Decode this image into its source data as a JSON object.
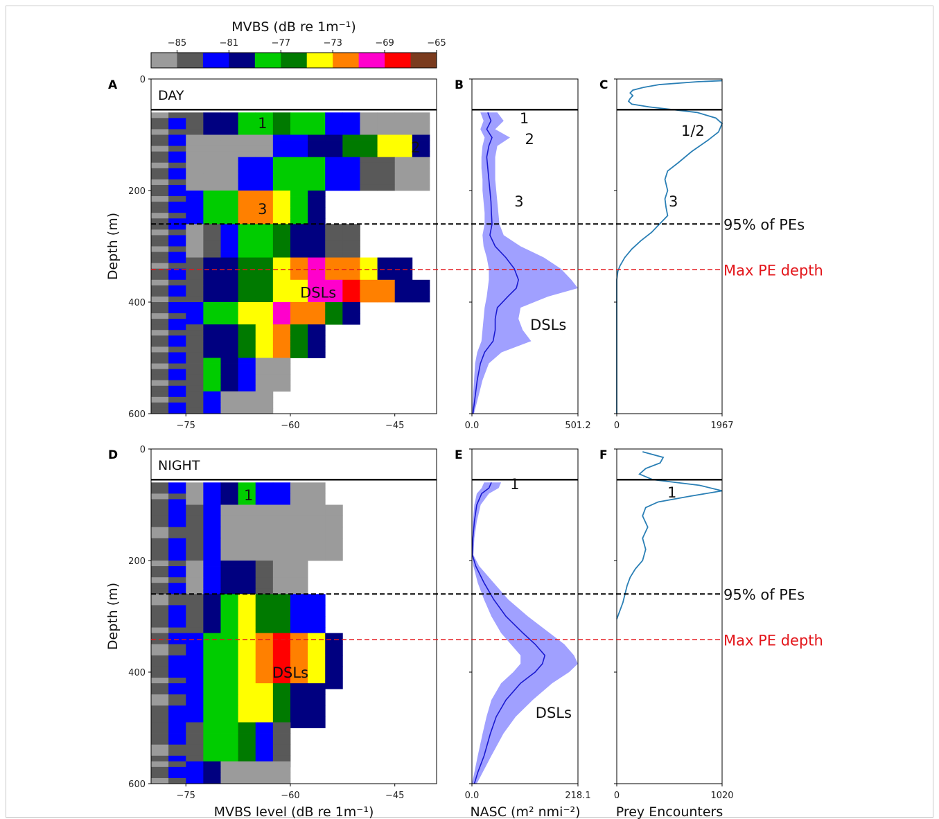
{
  "colorbar": {
    "title": "MVBS (dB re 1m⁻¹)",
    "ticks": [
      "−85",
      "−81",
      "−77",
      "−73",
      "−69",
      "−65"
    ],
    "colors": [
      "#9b9b9b",
      "#595959",
      "#0000ff",
      "#000080",
      "#00cc00",
      "#007a00",
      "#ffff00",
      "#ff8000",
      "#ff00cc",
      "#ff0000",
      "#7a3b1e"
    ]
  },
  "rows": [
    {
      "period": "DAY",
      "letters": [
        "A",
        "B",
        "C"
      ],
      "depth_ylabel": "Depth (m)",
      "depth_ticks": [
        "0",
        "200",
        "400",
        "600"
      ],
      "echogram_xticks": [
        "−75",
        "−60",
        "−45"
      ],
      "nasc_xticks": [
        "0.0",
        "501.2"
      ],
      "prey_xticks": [
        "0",
        "1967"
      ],
      "echogram_labels": [
        "1",
        "2",
        "3",
        "DSLs"
      ],
      "nasc_labels": [
        "1",
        "2",
        "3",
        "DSLs"
      ],
      "prey_labels": [
        "1/2",
        "3"
      ],
      "line_95_label": "95% of PEs",
      "line_max_label": "Max PE depth"
    },
    {
      "period": "NIGHT",
      "letters": [
        "D",
        "E",
        "F"
      ],
      "depth_ylabel": "Depth (m)",
      "depth_ticks": [
        "0",
        "200",
        "400",
        "600"
      ],
      "echogram_xticks": [
        "−75",
        "−60",
        "−45"
      ],
      "nasc_xticks": [
        "0.0",
        "218.1"
      ],
      "prey_xticks": [
        "0",
        "1020"
      ],
      "echogram_labels": [
        "1",
        "DSLs"
      ],
      "nasc_labels": [
        "1",
        "DSLs"
      ],
      "prey_labels": [
        "1"
      ],
      "line_95_label": "95% of PEs",
      "line_max_label": "Max PE depth"
    }
  ],
  "xlabels": {
    "echogram": "MVBS level (dB re 1m⁻¹)",
    "nasc": "NASC (m² nmi⁻²)",
    "prey": "Prey Encounters"
  },
  "chart_data": [
    {
      "panel": "A",
      "type": "heatmap",
      "title": "DAY",
      "xlabel": "MVBS level (dB re 1m⁻¹)",
      "ylabel": "Depth (m)",
      "xlim": [
        -80,
        -39
      ],
      "ylim": [
        600,
        0
      ],
      "colorbar_range": [
        -87,
        -65
      ],
      "sea_surface_depth_m": 55,
      "line_95pct_PE_depth_m": 260,
      "max_PE_depth_m": 342,
      "layers": [
        {
          "depth": [
            60,
            100
          ],
          "xmin": -80,
          "xmax": -42,
          "peak_x": -62,
          "peak_mvbs": -75
        },
        {
          "depth": [
            100,
            140
          ],
          "xmin": -80,
          "xmax": -40,
          "peak_x": -44,
          "peak_mvbs": -72
        },
        {
          "depth": [
            140,
            200
          ],
          "xmin": -80,
          "xmax": -42,
          "peak_x": -58,
          "peak_mvbs": -77
        },
        {
          "depth": [
            200,
            260
          ],
          "xmin": -80,
          "xmax": -55,
          "peak_x": -64,
          "peak_mvbs": -71
        },
        {
          "depth": [
            260,
            320
          ],
          "xmin": -80,
          "xmax": -52,
          "peak_x": -62,
          "peak_mvbs": -75
        },
        {
          "depth": [
            320,
            360
          ],
          "xmin": -80,
          "xmax": -44,
          "peak_x": -55,
          "peak_mvbs": -69
        },
        {
          "depth": [
            360,
            400
          ],
          "xmin": -80,
          "xmax": -42,
          "peak_x": -53,
          "peak_mvbs": -68
        },
        {
          "depth": [
            400,
            440
          ],
          "xmin": -80,
          "xmax": -50,
          "peak_x": -60,
          "peak_mvbs": -69
        },
        {
          "depth": [
            440,
            500
          ],
          "xmin": -80,
          "xmax": -55,
          "peak_x": -62,
          "peak_mvbs": -71
        },
        {
          "depth": [
            500,
            560
          ],
          "xmin": -80,
          "xmax": -62,
          "peak_x": -70,
          "peak_mvbs": -77
        },
        {
          "depth": [
            560,
            600
          ],
          "xmin": -80,
          "xmax": -64,
          "peak_x": -72,
          "peak_mvbs": -81
        }
      ]
    },
    {
      "panel": "B",
      "type": "line",
      "xlim": [
        0,
        501.2
      ],
      "ylim": [
        600,
        0
      ],
      "series": [
        {
          "depth": [
            60,
            75,
            90,
            105,
            120,
            140,
            160,
            180,
            200,
            220,
            240,
            260,
            280,
            300,
            320,
            340,
            360,
            375,
            390,
            410,
            430,
            450,
            470,
            490,
            510,
            540,
            570,
            600
          ],
          "mean": [
            75,
            90,
            70,
            95,
            80,
            70,
            75,
            80,
            85,
            90,
            92,
            95,
            85,
            110,
            160,
            200,
            220,
            210,
            170,
            120,
            110,
            110,
            100,
            60,
            40,
            25,
            15,
            5
          ],
          "lower": [
            40,
            55,
            40,
            60,
            50,
            45,
            45,
            50,
            50,
            55,
            60,
            60,
            50,
            55,
            70,
            80,
            80,
            75,
            70,
            60,
            55,
            50,
            45,
            25,
            15,
            10,
            5,
            0
          ],
          "upper": [
            120,
            150,
            110,
            180,
            120,
            110,
            110,
            110,
            115,
            120,
            125,
            130,
            150,
            230,
            340,
            420,
            470,
            501,
            360,
            230,
            220,
            240,
            280,
            140,
            80,
            50,
            30,
            10
          ]
        }
      ]
    },
    {
      "panel": "C",
      "type": "line",
      "xlim": [
        0,
        1967
      ],
      "ylim": [
        600,
        0
      ],
      "series": [
        {
          "depth": [
            3,
            5,
            10,
            15,
            20,
            25,
            30,
            35,
            40,
            45,
            50,
            60,
            70,
            80,
            95,
            110,
            130,
            150,
            165,
            180,
            200,
            215,
            230,
            245,
            260,
            275,
            290,
            305,
            320,
            335,
            345,
            360,
            400,
            450,
            500,
            550,
            600
          ],
          "prey": [
            1967,
            1500,
            800,
            500,
            300,
            250,
            300,
            250,
            220,
            280,
            600,
            1500,
            1850,
            1967,
            1900,
            1700,
            1400,
            1150,
            950,
            900,
            950,
            900,
            920,
            950,
            800,
            650,
            450,
            280,
            150,
            60,
            20,
            0,
            0,
            0,
            0,
            0,
            0
          ]
        }
      ]
    },
    {
      "panel": "D",
      "type": "heatmap",
      "title": "NIGHT",
      "xlabel": "MVBS level (dB re 1m⁻¹)",
      "ylabel": "Depth (m)",
      "xlim": [
        -80,
        -39
      ],
      "ylim": [
        600,
        0
      ],
      "colorbar_range": [
        -87,
        -65
      ],
      "sea_surface_depth_m": 55,
      "line_95pct_PE_depth_m": 260,
      "max_PE_depth_m": 342,
      "layers": [
        {
          "depth": [
            60,
            100
          ],
          "xmin": -80,
          "xmax": -56,
          "peak_x": -67,
          "peak_mvbs": -77
        },
        {
          "depth": [
            100,
            200
          ],
          "xmin": -80,
          "xmax": -54,
          "peak_x": -72,
          "peak_mvbs": -81
        },
        {
          "depth": [
            200,
            260
          ],
          "xmin": -80,
          "xmax": -58,
          "peak_x": -68,
          "peak_mvbs": -78
        },
        {
          "depth": [
            260,
            330
          ],
          "xmin": -80,
          "xmax": -57,
          "peak_x": -65,
          "peak_mvbs": -73
        },
        {
          "depth": [
            330,
            420
          ],
          "xmin": -80,
          "xmax": -53,
          "peak_x": -61,
          "peak_mvbs": -69
        },
        {
          "depth": [
            420,
            490
          ],
          "xmin": -80,
          "xmax": -56,
          "peak_x": -65,
          "peak_mvbs": -72
        },
        {
          "depth": [
            490,
            560
          ],
          "xmin": -80,
          "xmax": -60,
          "peak_x": -68,
          "peak_mvbs": -75
        },
        {
          "depth": [
            560,
            600
          ],
          "xmin": -80,
          "xmax": -60,
          "peak_x": -73,
          "peak_mvbs": -79
        }
      ]
    },
    {
      "panel": "E",
      "type": "line",
      "xlim": [
        0,
        218.1
      ],
      "ylim": [
        600,
        0
      ],
      "series": [
        {
          "depth": [
            60,
            70,
            80,
            100,
            130,
            160,
            190,
            210,
            240,
            270,
            300,
            330,
            350,
            370,
            385,
            400,
            420,
            450,
            480,
            510,
            550,
            580,
            600
          ],
          "mean": [
            40,
            35,
            20,
            10,
            5,
            2,
            1,
            8,
            25,
            45,
            70,
            105,
            130,
            150,
            145,
            130,
            100,
            70,
            50,
            38,
            25,
            12,
            5
          ],
          "lower": [
            25,
            20,
            10,
            5,
            2,
            1,
            0,
            3,
            12,
            25,
            40,
            60,
            80,
            100,
            100,
            85,
            60,
            40,
            30,
            22,
            12,
            5,
            0
          ],
          "upper": [
            60,
            55,
            35,
            18,
            10,
            5,
            3,
            15,
            45,
            75,
            115,
            160,
            190,
            210,
            218,
            200,
            165,
            125,
            90,
            65,
            40,
            22,
            10
          ]
        }
      ]
    },
    {
      "panel": "F",
      "type": "line",
      "xlim": [
        0,
        1020
      ],
      "ylim": [
        600,
        0
      ],
      "series": [
        {
          "depth": [
            5,
            15,
            25,
            35,
            45,
            55,
            65,
            75,
            85,
            95,
            105,
            120,
            140,
            160,
            180,
            200,
            215,
            230,
            245,
            260,
            275,
            290,
            305
          ],
          "prey": [
            250,
            450,
            420,
            280,
            220,
            350,
            800,
            1020,
            700,
            400,
            280,
            250,
            300,
            250,
            280,
            250,
            180,
            130,
            100,
            80,
            60,
            30,
            0
          ]
        }
      ]
    }
  ]
}
